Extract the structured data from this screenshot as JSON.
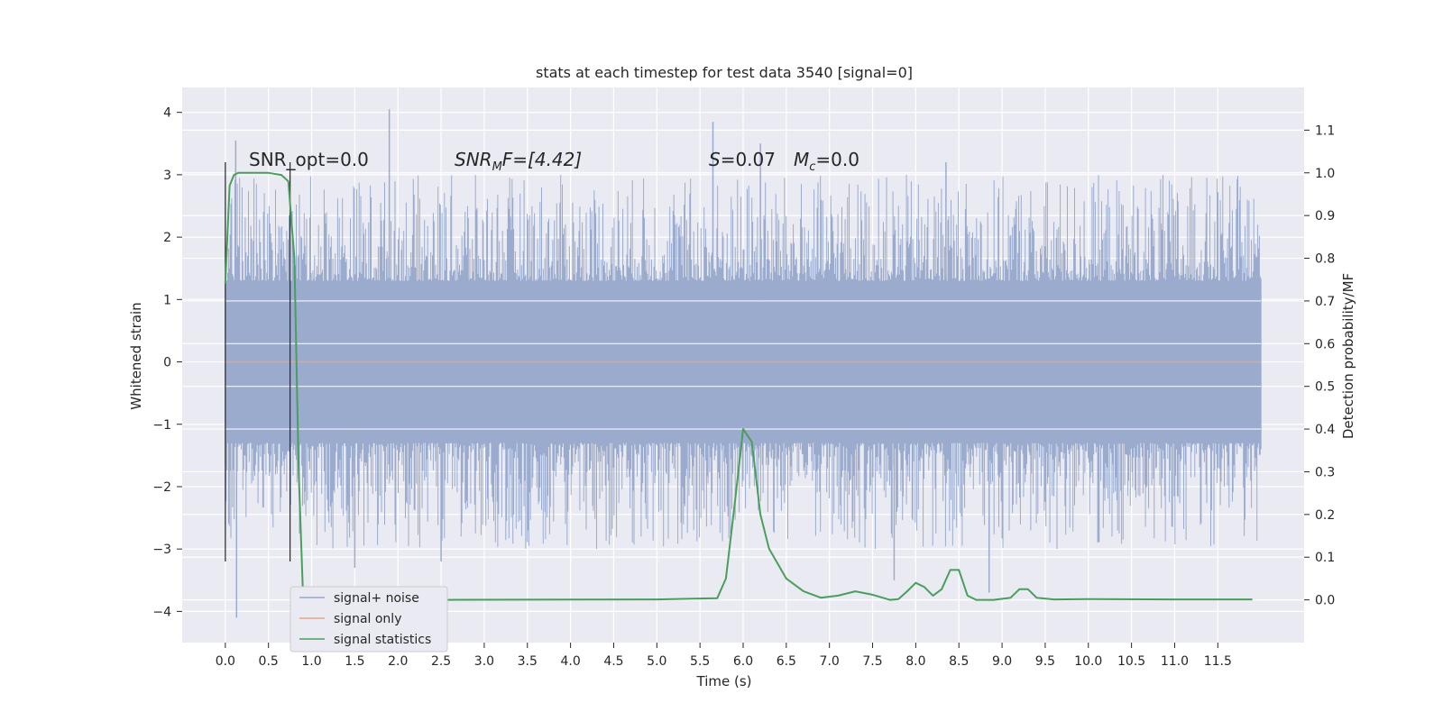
{
  "chart_data": {
    "type": "line",
    "title": "stats at each timestep for test data 3540 [signal=0]",
    "xlabel": "Time (s)",
    "ylabel": "Whitened strain",
    "y2label": "Detection probability/MF",
    "xlim": [
      -0.5,
      12.5
    ],
    "ylim": [
      -4.5,
      4.4
    ],
    "y2lim": [
      -0.1,
      1.2
    ],
    "x_ticks": [
      "0.0",
      "0.5",
      "1.0",
      "1.5",
      "2.0",
      "2.5",
      "3.0",
      "3.5",
      "4.0",
      "4.5",
      "5.0",
      "5.5",
      "6.0",
      "6.5",
      "7.0",
      "7.5",
      "8.0",
      "8.5",
      "9.0",
      "9.5",
      "10.0",
      "10.5",
      "11.0",
      "11.5"
    ],
    "y_ticks": [
      "4",
      "3",
      "2",
      "1",
      "0",
      "−1",
      "−2",
      "−3",
      "−4"
    ],
    "y2_ticks": [
      "1.1",
      "1.0",
      "0.9",
      "0.8",
      "0.7",
      "0.6",
      "0.5",
      "0.4",
      "0.3",
      "0.2",
      "0.1",
      "0.0"
    ],
    "grid": true,
    "legend_position": "bottom-left",
    "annotations": {
      "snr_opt": "SNR_opt=0.0",
      "snr_mf_main": "SNR",
      "snr_mf_sub": "M",
      "snr_mf_rest": "F=[4.42]",
      "s_main": "S",
      "s_rest": "=0.07",
      "mc_main": "M",
      "mc_sub": "c",
      "mc_rest": "=0.0"
    },
    "series": [
      {
        "name": "signal+ noise",
        "color": "#97a8cc",
        "axis": "left",
        "x_range": [
          0.0,
          12.0
        ],
        "envelope_typical": [
          -1.3,
          1.3
        ],
        "spikes": [
          [
            0.12,
            3.55
          ],
          [
            0.13,
            -4.1
          ],
          [
            1.9,
            4.05
          ],
          [
            5.65,
            3.85
          ],
          [
            6.2,
            3.5
          ],
          [
            8.35,
            3.2
          ],
          [
            8.85,
            -3.7
          ],
          [
            1.5,
            -3.3
          ],
          [
            7.75,
            -3.5
          ],
          [
            2.5,
            -3.2
          ]
        ]
      },
      {
        "name": "signal only",
        "color": "#e5a58a",
        "axis": "left",
        "x": [
          0.0,
          12.0
        ],
        "y": [
          0.0,
          0.0
        ]
      },
      {
        "name": "signal statistics",
        "color": "#4a9e5c",
        "axis": "right",
        "x": [
          0.0,
          0.05,
          0.1,
          0.15,
          0.25,
          0.5,
          0.65,
          0.73,
          0.8,
          0.85,
          0.9,
          0.95,
          1.1,
          1.5,
          1.75,
          1.85,
          2.0,
          2.5,
          5.0,
          5.7,
          5.8,
          5.9,
          6.0,
          6.1,
          6.2,
          6.3,
          6.5,
          6.7,
          6.9,
          7.1,
          7.3,
          7.5,
          7.7,
          7.8,
          7.9,
          8.0,
          8.1,
          8.2,
          8.3,
          8.4,
          8.5,
          8.6,
          8.7,
          8.9,
          9.1,
          9.2,
          9.3,
          9.4,
          9.6,
          10.0,
          11.0,
          11.9
        ],
        "y": [
          0.74,
          0.97,
          0.995,
          1.0,
          1.0,
          1.0,
          0.995,
          0.98,
          0.8,
          0.3,
          0.01,
          0.0,
          0.0,
          0.0,
          0.002,
          0.005,
          0.001,
          0.0,
          0.001,
          0.004,
          0.05,
          0.22,
          0.4,
          0.37,
          0.2,
          0.12,
          0.05,
          0.02,
          0.005,
          0.01,
          0.02,
          0.012,
          0.0,
          0.002,
          0.02,
          0.04,
          0.03,
          0.01,
          0.025,
          0.07,
          0.07,
          0.01,
          0.0,
          0.0,
          0.005,
          0.025,
          0.025,
          0.005,
          0.001,
          0.002,
          0.001,
          0.001
        ]
      }
    ],
    "vertical_markers": [
      {
        "x": 0.0,
        "y_from": -3.2,
        "y_to": 3.2,
        "color": "#333333"
      },
      {
        "x": 0.75,
        "y_from": -3.2,
        "y_to": 3.2,
        "color": "#333333"
      }
    ]
  }
}
